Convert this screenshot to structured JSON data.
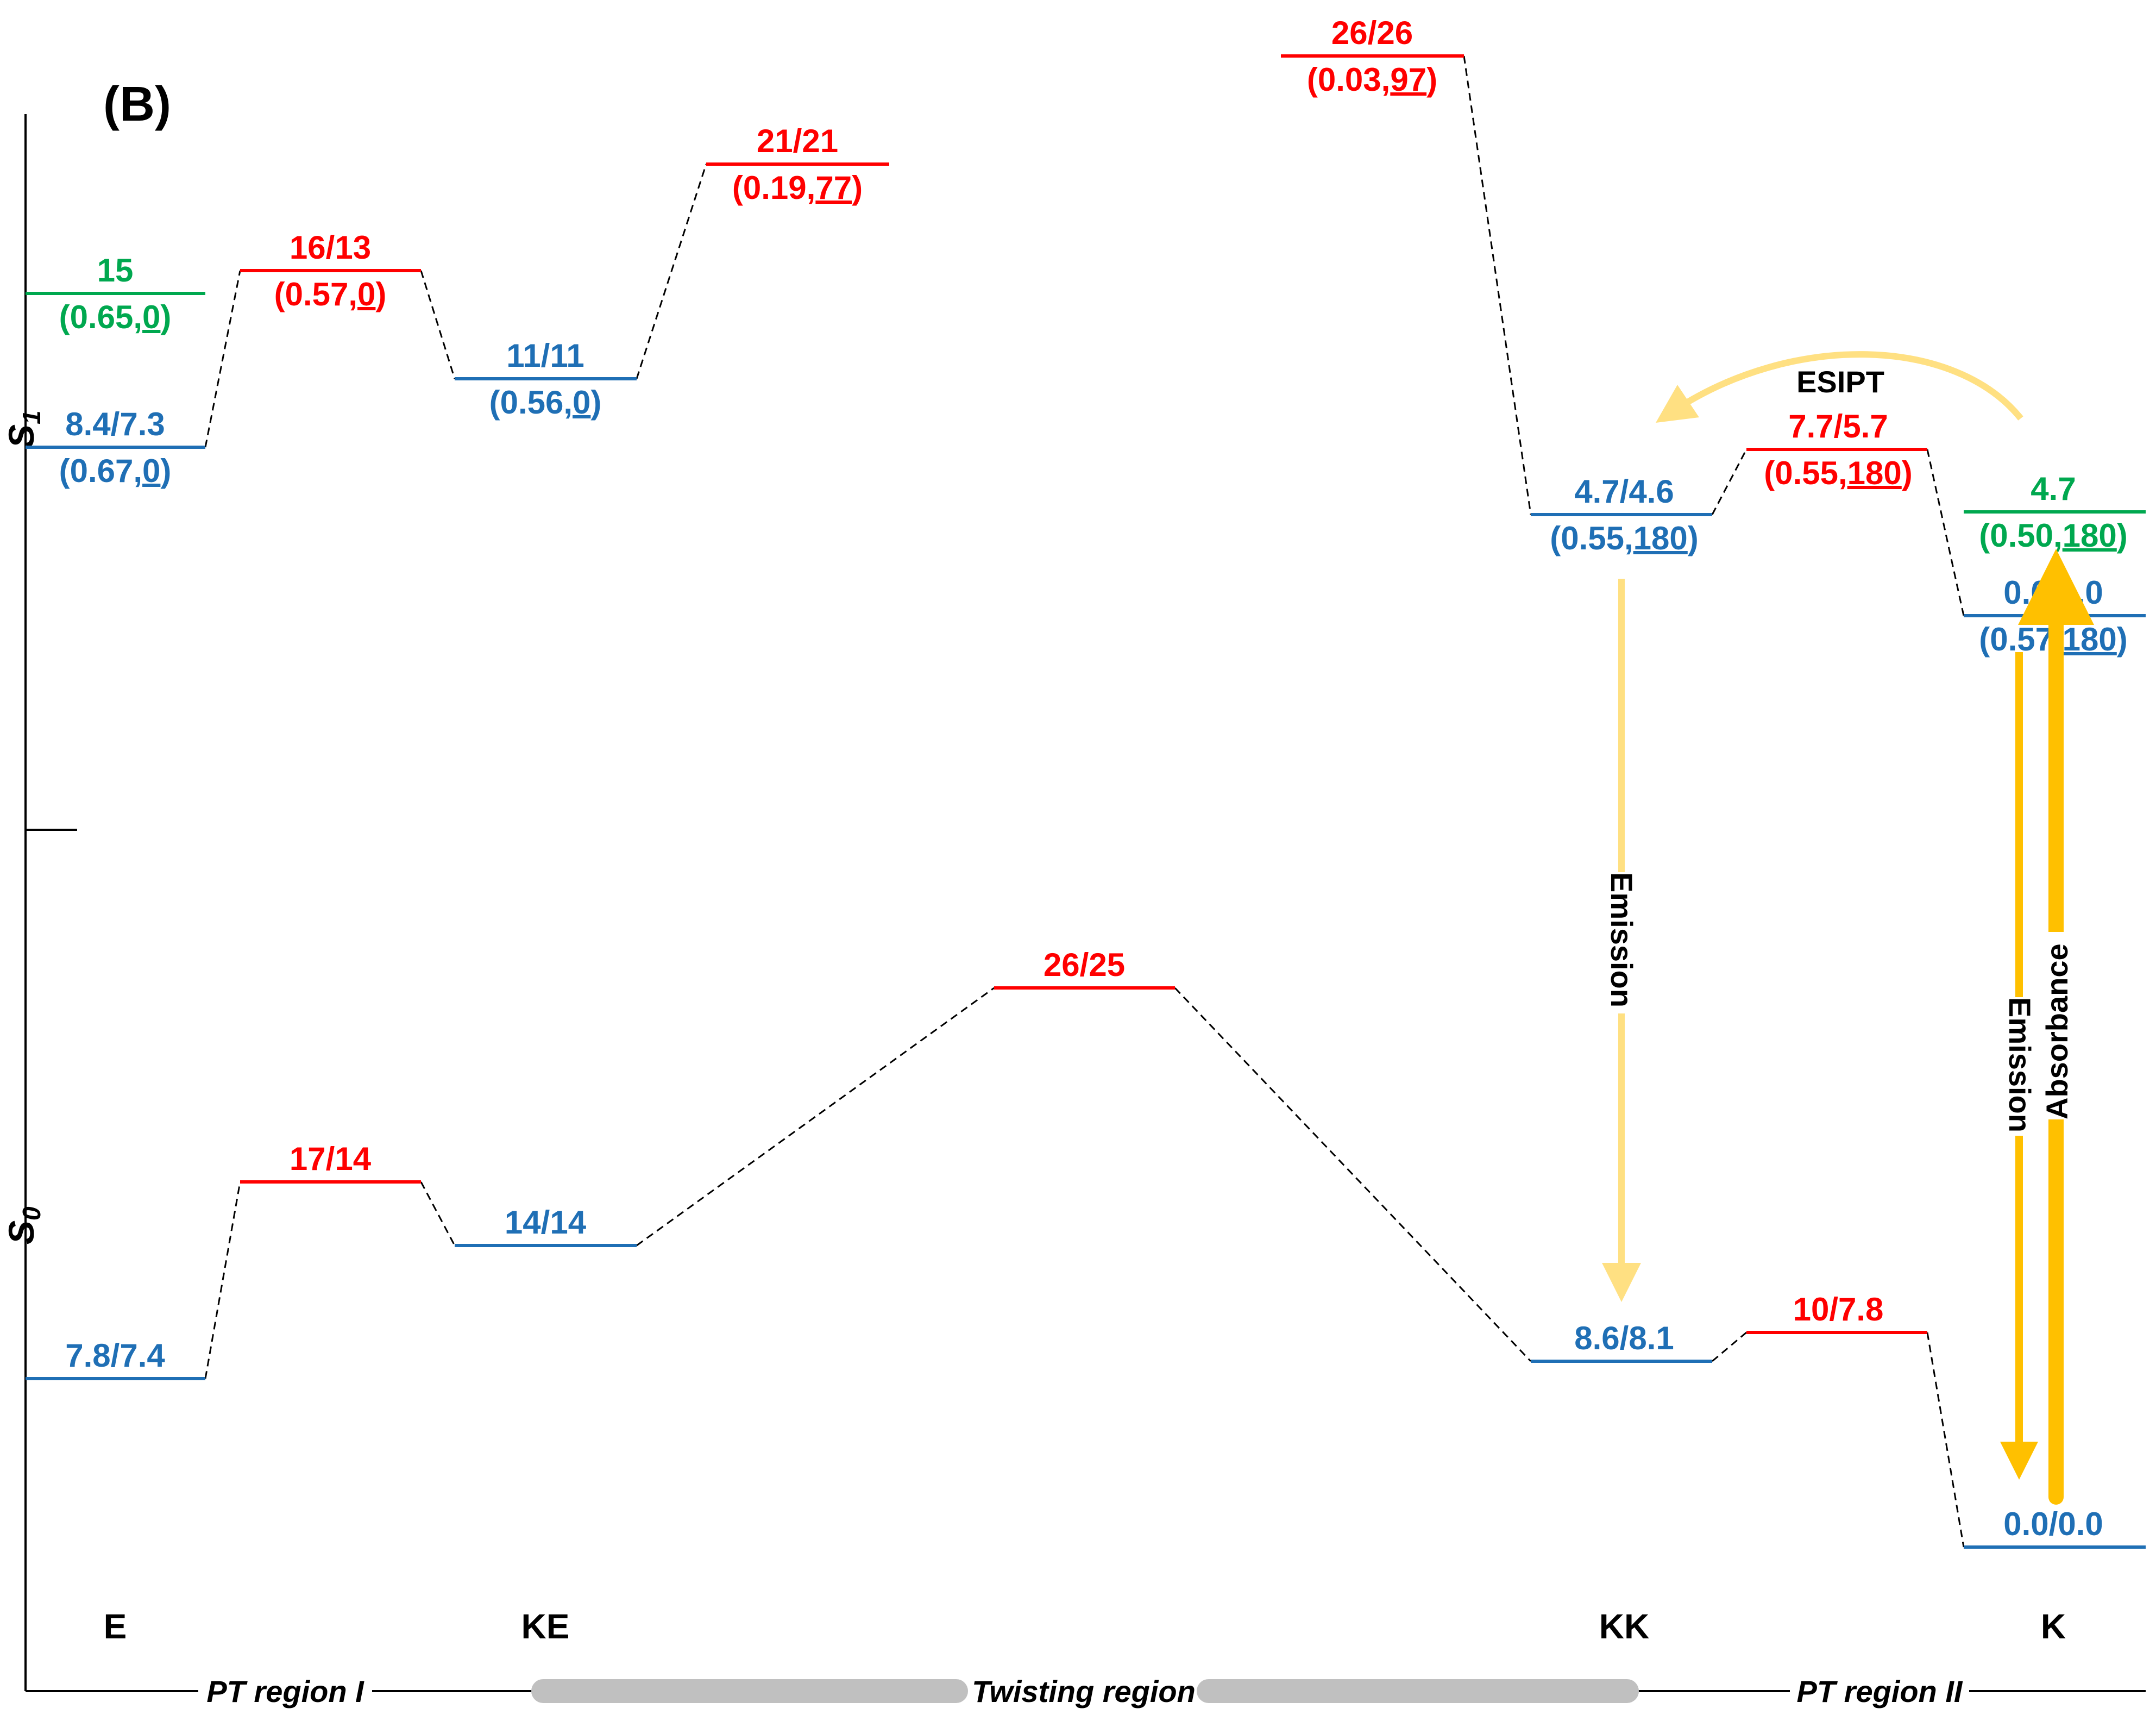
{
  "panel_label": "(B)",
  "axis": {
    "s1_label": "S",
    "s1_sub": "1",
    "s0_label": "S",
    "s0_sub": "0"
  },
  "colors": {
    "blue": "#1f6fb5",
    "red": "#ff0000",
    "green": "#00a84f",
    "yellow_light": "#ffe082",
    "yellow": "#ffc000",
    "gray_bar": "#c0c0c0"
  },
  "species": {
    "E": "E",
    "KE": "KE",
    "KK": "KK",
    "K": "K"
  },
  "regions": {
    "pt1": "PT region I",
    "twist": "Twisting region",
    "pt2": "PT region II"
  },
  "arrows": {
    "esipt": "ESIPT",
    "emission_kk": "Emission",
    "emission_k": "Emission",
    "absorbance": "Absorbance"
  },
  "levels": {
    "s1_green_E": {
      "energy": "15",
      "pre": "(0.65,",
      "u": "0",
      "post": ")"
    },
    "s1_blue_E": {
      "energy": "8.4/7.3",
      "pre": "(0.67,",
      "u": "0",
      "post": ")"
    },
    "s1_red_EKE": {
      "energy": "16/13",
      "pre": "(0.57,",
      "u": "0",
      "post": ")"
    },
    "s1_blue_KE": {
      "energy": "11/11",
      "pre": "(0.56,",
      "u": "0",
      "post": ")"
    },
    "s1_red_21": {
      "energy": "21/21",
      "pre": "(0.19,",
      "u": "77",
      "post": ")"
    },
    "s1_red_26": {
      "energy": "26/26",
      "pre": "(0.03,",
      "u": "97",
      "post": ")"
    },
    "s1_blue_KK": {
      "energy": "4.7/4.6",
      "pre": "(0.55,",
      "u": "180",
      "post": ")"
    },
    "s1_red_KKK": {
      "energy": "7.7/5.7",
      "pre": "(0.55,",
      "u": "180",
      "post": ")"
    },
    "s1_green_K": {
      "energy": "4.7",
      "pre": "(0.50,",
      "u": "180",
      "post": ")"
    },
    "s1_blue_K": {
      "energy": "0.0/0.0",
      "pre": "(0.57,",
      "u": "180",
      "post": ")"
    },
    "s0_blue_E": {
      "energy": "7.8/7.4"
    },
    "s0_red_EKE": {
      "energy": "17/14"
    },
    "s0_blue_KE": {
      "energy": "14/14"
    },
    "s0_red_twist": {
      "energy": "26/25"
    },
    "s0_blue_KK": {
      "energy": "8.6/8.1"
    },
    "s0_red_KKK": {
      "energy": "10/7.8"
    },
    "s0_blue_K": {
      "energy": "0.0/0.0"
    }
  }
}
